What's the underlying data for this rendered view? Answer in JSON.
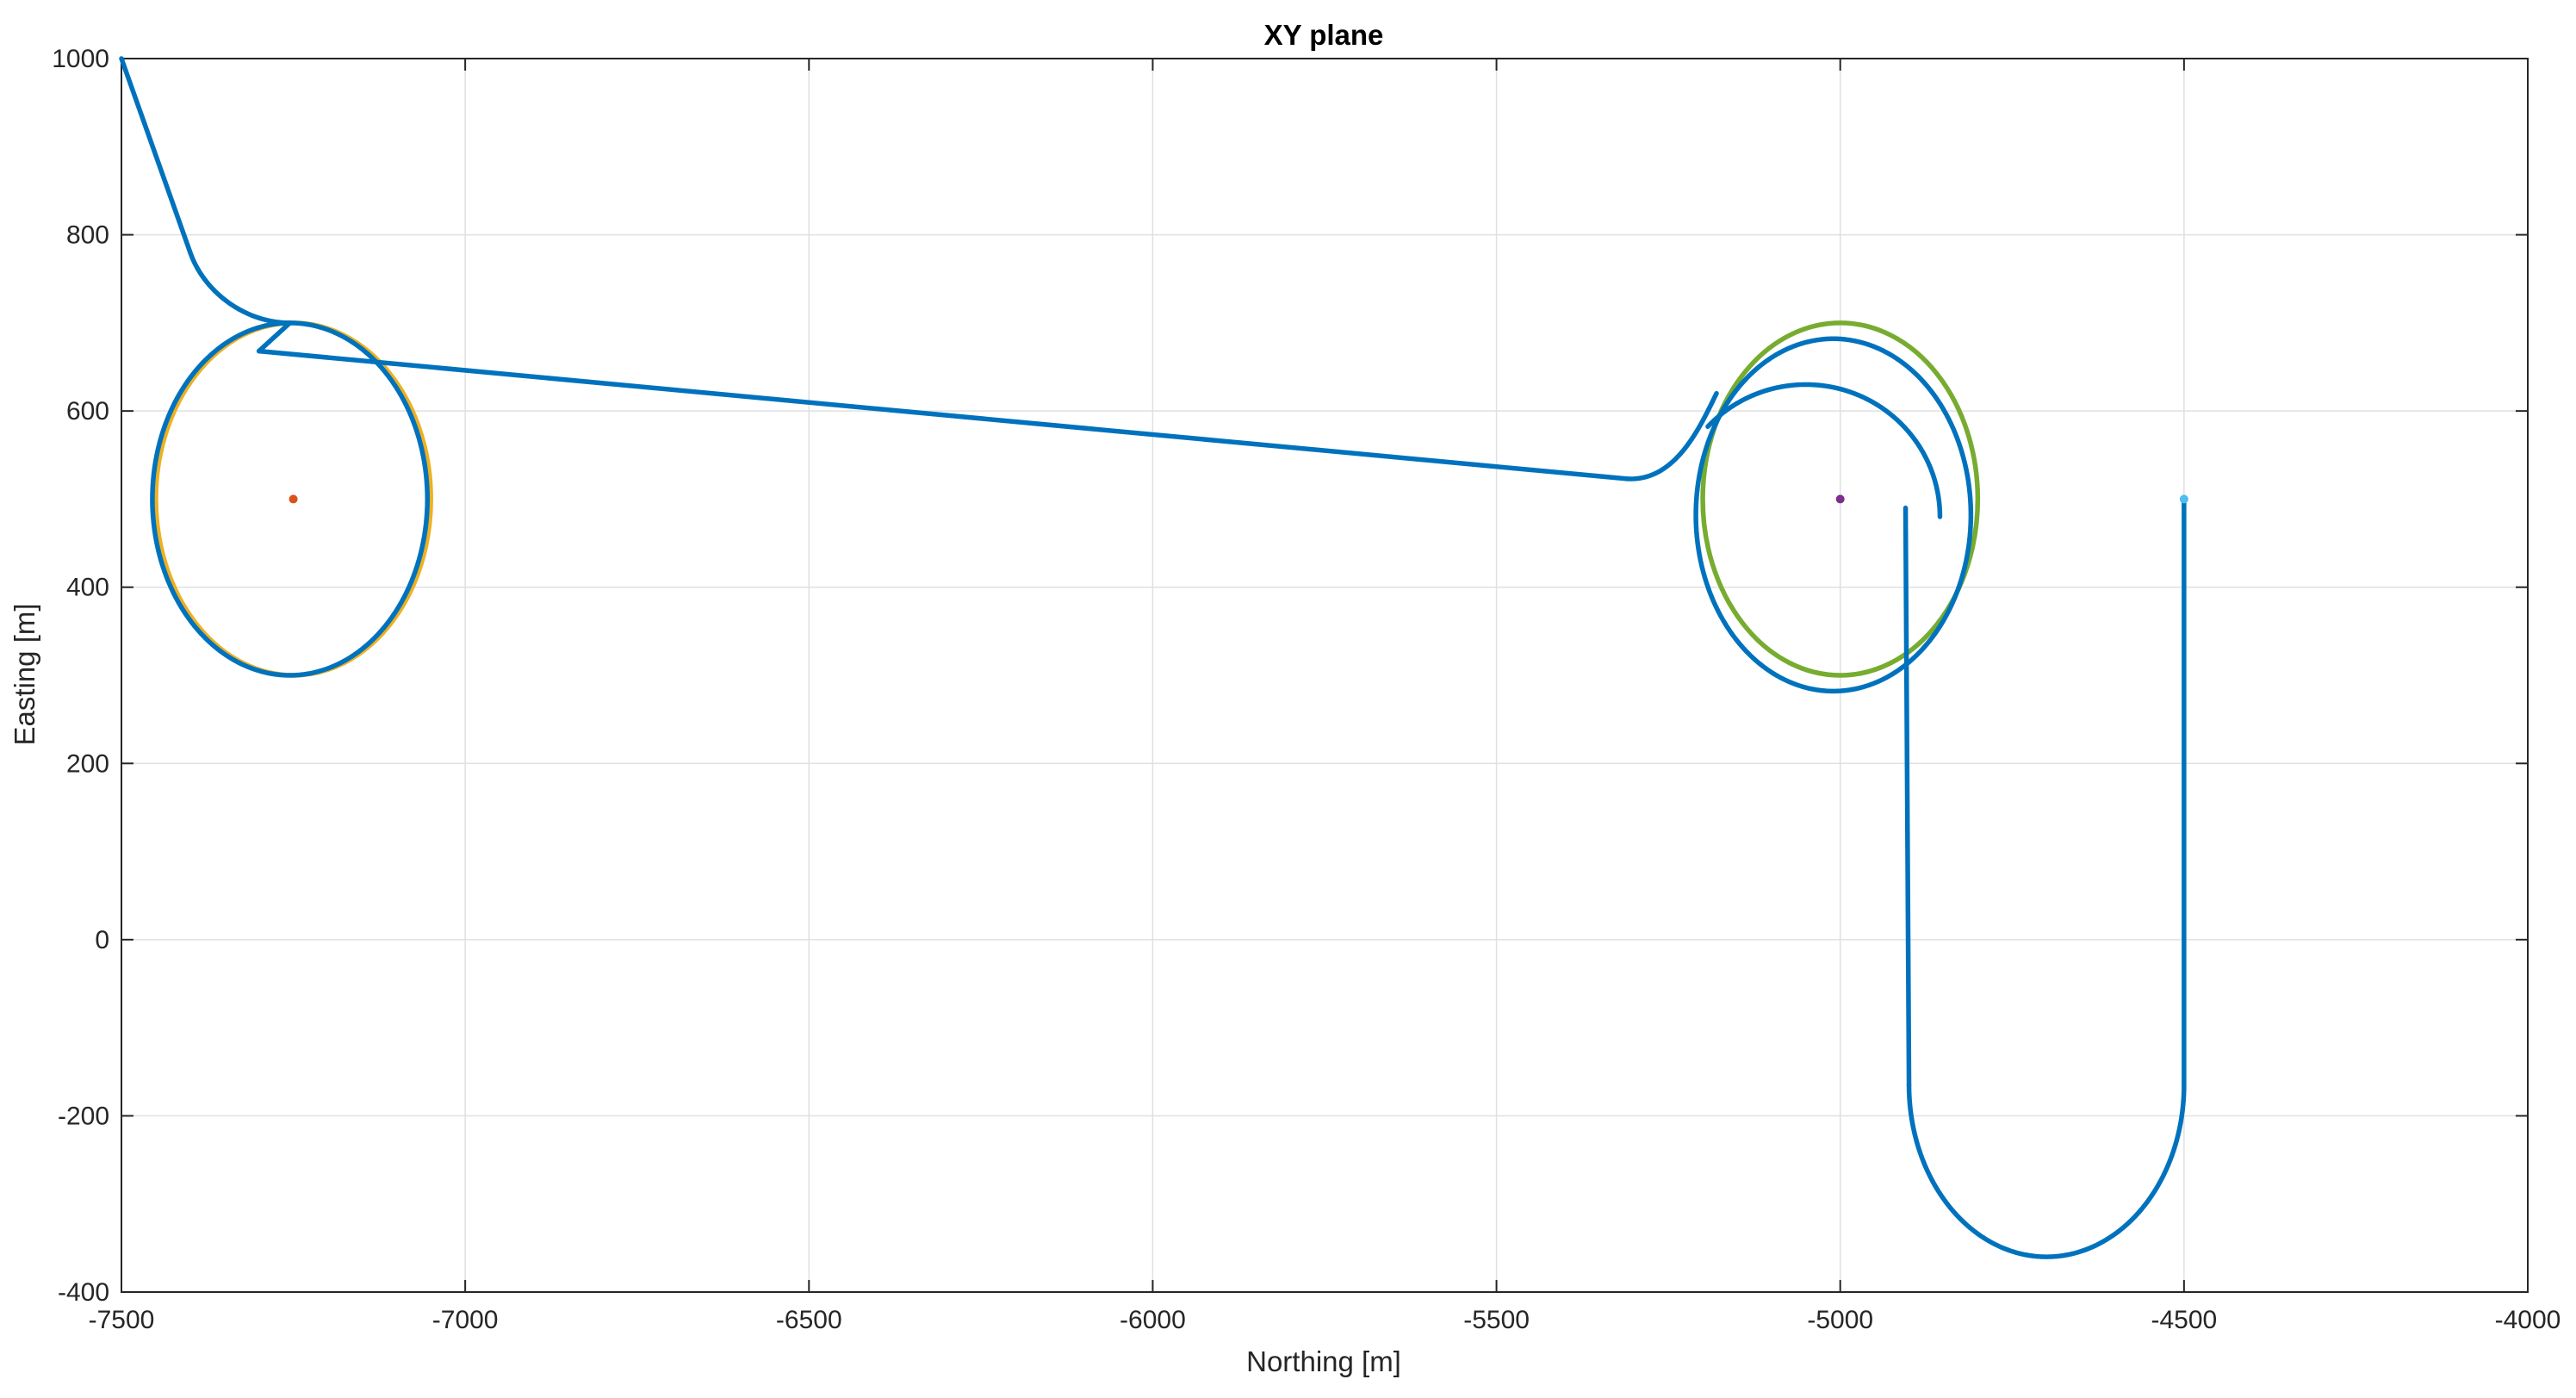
{
  "chart_data": {
    "type": "line",
    "title": "XY plane",
    "xlabel": "Northing [m]",
    "ylabel": "Easting [m]",
    "xlim": [
      -7500,
      -4000
    ],
    "ylim": [
      -400,
      1000
    ],
    "xticks": [
      -7500,
      -7000,
      -6500,
      -6000,
      -5500,
      -5000,
      -4500,
      -4000
    ],
    "yticks": [
      -400,
      -200,
      0,
      200,
      400,
      600,
      800,
      1000
    ],
    "grid": true,
    "series": [
      {
        "kind": "path",
        "color": "#0072BD",
        "segments": [
          {
            "type": "line",
            "points": [
              [
                -7500,
                1000
              ],
              [
                -7400,
                780
              ]
            ]
          },
          {
            "type": "curve",
            "points": [
              [
                -7400,
                780
              ],
              [
                -7380,
                735
              ],
              [
                -7320,
                700
              ],
              [
                -7255,
                700
              ]
            ]
          },
          {
            "type": "ellipse_cw",
            "cx": -7255,
            "cy": 500,
            "rx": 200,
            "ry": 200,
            "from_deg": 90,
            "to_deg": 450
          },
          {
            "type": "line",
            "points": [
              [
                -7255,
                700
              ],
              [
                -7300,
                668
              ]
            ]
          },
          {
            "type": "line",
            "points": [
              [
                -7300,
                668
              ],
              [
                -5310,
                523
              ]
            ]
          },
          {
            "type": "curve",
            "points": [
              [
                -5310,
                523
              ],
              [
                -5240,
                520
              ],
              [
                -5205,
                580
              ],
              [
                -5180,
                620
              ]
            ]
          },
          {
            "type": "ellipse_seg",
            "cx": -5010,
            "cy": 482,
            "rx": 200,
            "ry": 200,
            "from_deg": 137,
            "to_deg": -223
          },
          {
            "type": "ellipse_seg",
            "cx": -5050,
            "cy": 480,
            "rx": 195,
            "ry": 150,
            "from_deg": 137,
            "to_deg": 0
          },
          {
            "type": "line",
            "points": [
              [
                -4905,
                490
              ],
              [
                -4900,
                -165
              ]
            ]
          },
          {
            "type": "ellipse_seg",
            "cx": -4700,
            "cy": -165,
            "rx": 200,
            "ry": 195,
            "from_deg": 180,
            "to_deg": 360
          },
          {
            "type": "line",
            "points": [
              [
                -4500,
                -165
              ],
              [
                -4500,
                500
              ]
            ]
          }
        ]
      },
      {
        "kind": "ellipse",
        "color": "#EDB120",
        "cx": -7250,
        "cy": 500,
        "rx": 200,
        "ry": 200
      },
      {
        "kind": "ellipse",
        "color": "#77AC30",
        "cx": -5000,
        "cy": 500,
        "rx": 200,
        "ry": 200
      },
      {
        "kind": "point",
        "color": "#D95319",
        "x": -7250,
        "y": 500
      },
      {
        "kind": "point",
        "color": "#7E2F8E",
        "x": -5000,
        "y": 500
      },
      {
        "kind": "point",
        "color": "#4DBEEE",
        "x": -4500,
        "y": 500
      }
    ]
  }
}
